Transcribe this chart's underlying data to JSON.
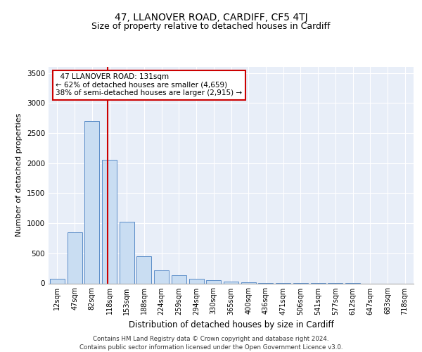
{
  "title_line1": "47, LLANOVER ROAD, CARDIFF, CF5 4TJ",
  "title_line2": "Size of property relative to detached houses in Cardiff",
  "xlabel": "Distribution of detached houses by size in Cardiff",
  "ylabel": "Number of detached properties",
  "bar_labels": [
    "12sqm",
    "47sqm",
    "82sqm",
    "118sqm",
    "153sqm",
    "188sqm",
    "224sqm",
    "259sqm",
    "294sqm",
    "330sqm",
    "365sqm",
    "400sqm",
    "436sqm",
    "471sqm",
    "506sqm",
    "541sqm",
    "577sqm",
    "612sqm",
    "647sqm",
    "683sqm",
    "718sqm"
  ],
  "bar_values": [
    75,
    850,
    2700,
    2050,
    1020,
    450,
    215,
    135,
    75,
    50,
    35,
    20,
    10,
    5,
    3,
    2,
    1,
    1,
    0,
    0,
    0
  ],
  "bar_color": "#c9ddf2",
  "bar_edge_color": "#5b8dc8",
  "annotation_text": "  47 LLANOVER ROAD: 131sqm  \n← 62% of detached houses are smaller (4,659)\n38% of semi-detached houses are larger (2,915) →",
  "annotation_box_color": "#ffffff",
  "annotation_box_edge": "#cc0000",
  "ylim": [
    0,
    3600
  ],
  "yticks": [
    0,
    500,
    1000,
    1500,
    2000,
    2500,
    3000,
    3500
  ],
  "bg_color": "#e8eef8",
  "grid_color": "#ffffff",
  "footer_text": "Contains HM Land Registry data © Crown copyright and database right 2024.\nContains public sector information licensed under the Open Government Licence v3.0.",
  "title_fontsize": 10,
  "subtitle_fontsize": 9,
  "bar_width": 0.85
}
